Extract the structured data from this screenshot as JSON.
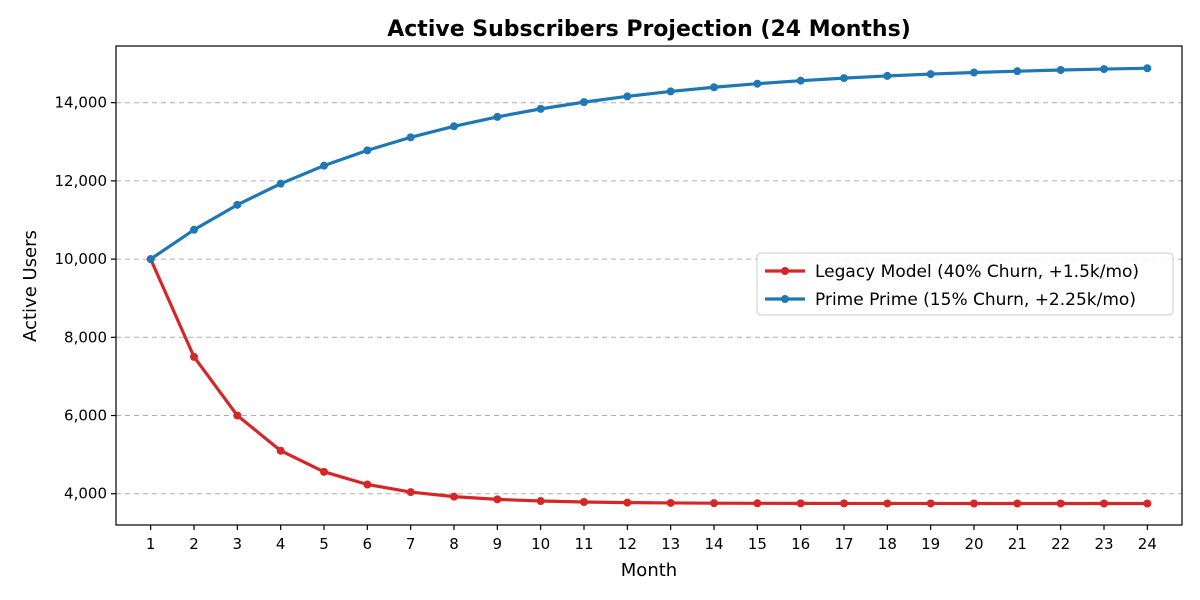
{
  "chart_data": {
    "type": "line",
    "title": "Active Subscribers Projection (24 Months)",
    "xlabel": "Month",
    "ylabel": "Active Users",
    "x": [
      1,
      2,
      3,
      4,
      5,
      6,
      7,
      8,
      9,
      10,
      11,
      12,
      13,
      14,
      15,
      16,
      17,
      18,
      19,
      20,
      21,
      22,
      23,
      24
    ],
    "xlim": [
      0.2,
      24.8
    ],
    "ylim": [
      3200,
      15450
    ],
    "yticks": [
      4000,
      6000,
      8000,
      10000,
      12000,
      14000
    ],
    "ytick_labels": [
      "4,000",
      "6,000",
      "8,000",
      "10,000",
      "12,000",
      "14,000"
    ],
    "xtick_labels": [
      "1",
      "2",
      "3",
      "4",
      "5",
      "6",
      "7",
      "8",
      "9",
      "10",
      "11",
      "12",
      "13",
      "14",
      "15",
      "16",
      "17",
      "18",
      "19",
      "20",
      "21",
      "22",
      "23",
      "24"
    ],
    "grid": "horizontal dashed",
    "legend_position": "center-right",
    "series": [
      {
        "name": "Legacy Model (40% Churn, +1.5k/mo)",
        "color": "#d62728",
        "values": [
          10000,
          7500,
          6000,
          5100,
          4560,
          4236,
          4042,
          3925,
          3855,
          3813,
          3788,
          3773,
          3764,
          3758,
          3755,
          3753,
          3752,
          3751,
          3751,
          3750,
          3750,
          3750,
          3750,
          3750
        ]
      },
      {
        "name": "Prime Prime (15% Churn, +2.25k/mo)",
        "color": "#1f77b4",
        "values": [
          10000,
          10750,
          11388,
          11929,
          12390,
          12781,
          13114,
          13397,
          13637,
          13842,
          14015,
          14163,
          14288,
          14395,
          14486,
          14563,
          14629,
          14685,
          14732,
          14772,
          14806,
          14836,
          14860,
          14881
        ]
      }
    ]
  }
}
